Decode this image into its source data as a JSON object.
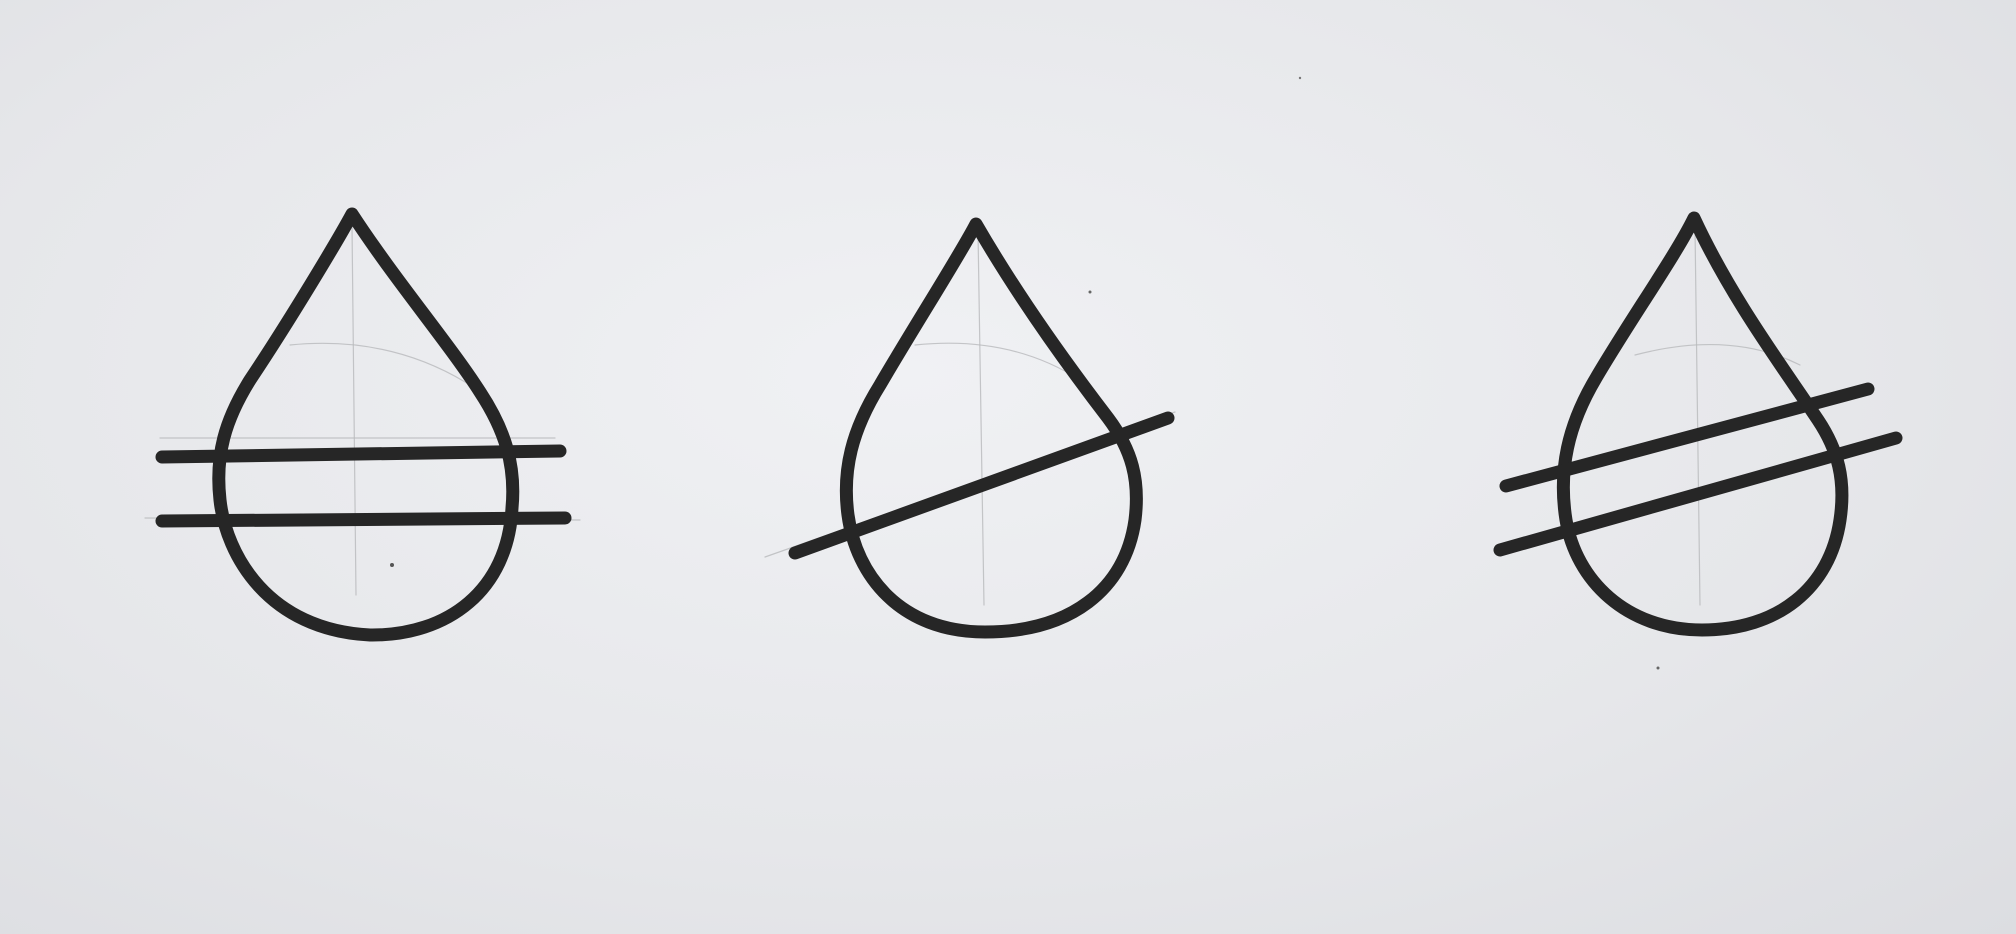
{
  "page": {
    "background": "#e9eaee",
    "ink_color": "#262626",
    "pencil_color": "#b8b9bc"
  },
  "symbols": [
    {
      "name": "drop-two-horizontal-lines",
      "strokes": 2,
      "orientation": "horizontal"
    },
    {
      "name": "drop-one-diagonal-line",
      "strokes": 1,
      "orientation": "diagonal"
    },
    {
      "name": "drop-two-diagonal-lines",
      "strokes": 2,
      "orientation": "diagonal"
    }
  ]
}
